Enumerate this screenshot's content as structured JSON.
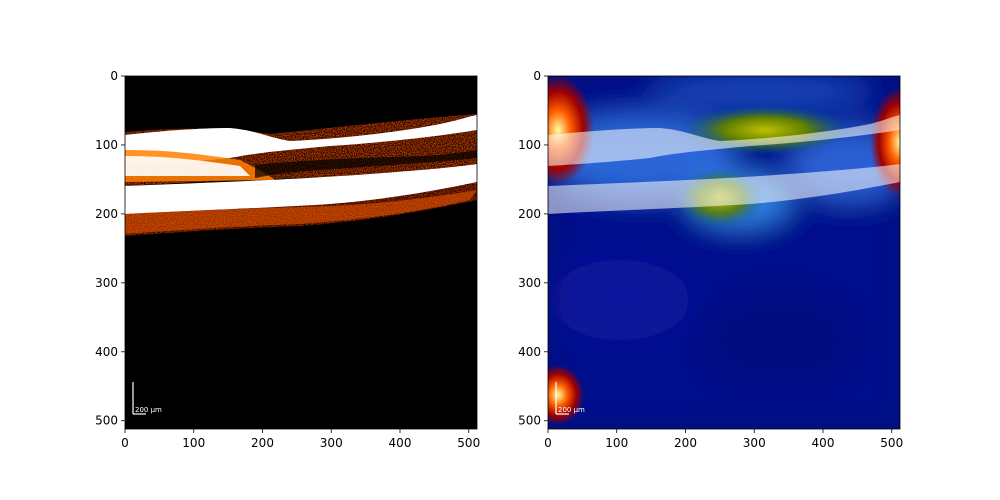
{
  "figure": {
    "panels": [
      {
        "name": "oct-scan",
        "colormap": "hot",
        "xlim": [
          0,
          512
        ],
        "ylim": [
          512,
          0
        ],
        "xticks": [
          "0",
          "100",
          "200",
          "300",
          "400",
          "500"
        ],
        "yticks": [
          "0",
          "100",
          "200",
          "300",
          "400",
          "500"
        ],
        "scale_bar_label": "200 µm"
      },
      {
        "name": "attention-heatmap-overlay",
        "colormap": "jet",
        "xlim": [
          0,
          512
        ],
        "ylim": [
          512,
          0
        ],
        "xticks": [
          "0",
          "100",
          "200",
          "300",
          "400",
          "500"
        ],
        "yticks": [
          "0",
          "100",
          "200",
          "300",
          "400",
          "500"
        ],
        "scale_bar_label": "200 µm"
      }
    ]
  }
}
